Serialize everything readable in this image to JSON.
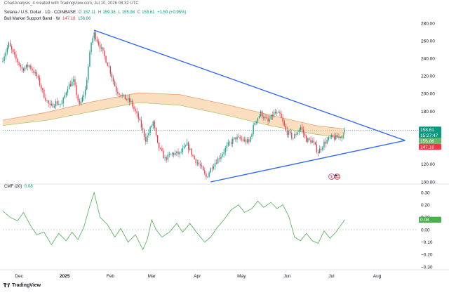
{
  "header": {
    "title": "ChartAnalysis_4 created with TradingView.com, Jul 10, 2026 08:32 UTC",
    "symbol": "Solana / U.S. Dollar · 1D · COINBASE",
    "o_label": "O",
    "o_value": "157.11",
    "h_label": "H",
    "h_value": "159.38",
    "l_label": "L",
    "l_value": "155.98",
    "c_label": "C",
    "c_value": "158.61",
    "change": "+1.50 (+0.95%)",
    "indicator_name": "Bull Market Support Band · W",
    "indicator_v1": "147.18",
    "indicator_v2": "156.86",
    "cmf_label": "CMF (20)",
    "cmf_value": "0.08"
  },
  "footer": {
    "brand": "TradingView"
  },
  "colors": {
    "up": "#089981",
    "down": "#f23645",
    "trendline": "#2962ff",
    "band_fill": "#f5c28a",
    "band_upper": "#e8a070",
    "band_lower": "#a5c96e",
    "cmf_line": "#4caf50",
    "last_price_tag": "#089981",
    "timer_tag": "#089981",
    "band_tag_1": "#f23645",
    "band_tag_2": "#66bb6a",
    "cmf_tag": "#4caf50"
  },
  "price_tags": {
    "last_price": "158.61",
    "countdown": "15:27:47",
    "band_1": "156.86",
    "band_2": "147.18",
    "cmf_tag": "0.08"
  },
  "icons": [
    "tradingview-logo-icon",
    "event-marker-icon",
    "us-flag-icon"
  ],
  "chart_data": [
    {
      "type": "candlestick",
      "title": "Solana / U.S. Dollar · 1D · COINBASE",
      "ylim": [
        100,
        290
      ],
      "y_ticks": [
        "100.00",
        "120.00",
        "140.00",
        "160.00",
        "180.00",
        "200.00",
        "220.00",
        "240.00",
        "260.00",
        "280.00"
      ],
      "x_ticks": [
        "Dec",
        "2025",
        "Feb",
        "Mar",
        "Apr",
        "May",
        "Jun",
        "Jul",
        "Aug"
      ],
      "x_tick_dates": [
        "2024-12-01",
        "2025-01-01",
        "2025-02-01",
        "2025-03-01",
        "2025-04-01",
        "2025-05-01",
        "2025-06-01",
        "2025-07-01",
        "2025-08-01"
      ],
      "x_range": [
        "2024-11-20",
        "2025-08-25"
      ],
      "close_keypoints": [
        [
          "2024-11-20",
          240
        ],
        [
          "2024-11-24",
          256
        ],
        [
          "2024-11-28",
          242
        ],
        [
          "2024-12-03",
          228
        ],
        [
          "2024-12-08",
          232
        ],
        [
          "2024-12-13",
          220
        ],
        [
          "2024-12-18",
          198
        ],
        [
          "2024-12-22",
          185
        ],
        [
          "2024-12-26",
          190
        ],
        [
          "2024-12-30",
          188
        ],
        [
          "2025-01-03",
          208
        ],
        [
          "2025-01-07",
          214
        ],
        [
          "2025-01-11",
          186
        ],
        [
          "2025-01-15",
          204
        ],
        [
          "2025-01-19",
          258
        ],
        [
          "2025-01-21",
          268
        ],
        [
          "2025-01-26",
          250
        ],
        [
          "2025-01-31",
          230
        ],
        [
          "2025-02-05",
          204
        ],
        [
          "2025-02-10",
          196
        ],
        [
          "2025-02-15",
          190
        ],
        [
          "2025-02-20",
          172
        ],
        [
          "2025-02-25",
          148
        ],
        [
          "2025-03-02",
          168
        ],
        [
          "2025-03-05",
          142
        ],
        [
          "2025-03-10",
          126
        ],
        [
          "2025-03-15",
          132
        ],
        [
          "2025-03-20",
          132
        ],
        [
          "2025-03-25",
          142
        ],
        [
          "2025-03-30",
          126
        ],
        [
          "2025-04-03",
          118
        ],
        [
          "2025-04-07",
          105
        ],
        [
          "2025-04-11",
          118
        ],
        [
          "2025-04-16",
          128
        ],
        [
          "2025-04-22",
          142
        ],
        [
          "2025-04-27",
          150
        ],
        [
          "2025-05-01",
          148
        ],
        [
          "2025-05-06",
          145
        ],
        [
          "2025-05-10",
          168
        ],
        [
          "2025-05-14",
          178
        ],
        [
          "2025-05-19",
          168
        ],
        [
          "2025-05-23",
          178
        ],
        [
          "2025-05-27",
          176
        ],
        [
          "2025-05-31",
          158
        ],
        [
          "2025-06-05",
          150
        ],
        [
          "2025-06-10",
          162
        ],
        [
          "2025-06-14",
          148
        ],
        [
          "2025-06-18",
          146
        ],
        [
          "2025-06-22",
          134
        ],
        [
          "2025-06-26",
          144
        ],
        [
          "2025-06-30",
          150
        ],
        [
          "2025-07-04",
          150
        ],
        [
          "2025-07-08",
          152
        ],
        [
          "2025-07-10",
          158.61
        ]
      ],
      "last_candle": {
        "date": "2025-07-10",
        "open": 157.11,
        "high": 159.38,
        "low": 155.98,
        "close": 158.61
      },
      "series": [
        {
          "name": "Bull Market Support Band · W",
          "type": "band",
          "upper": [
            [
              "2024-11-20",
              170
            ],
            [
              "2024-12-20",
              179
            ],
            [
              "2025-01-20",
              191
            ],
            [
              "2025-02-20",
              201
            ],
            [
              "2025-03-20",
              199
            ],
            [
              "2025-04-20",
              188
            ],
            [
              "2025-05-20",
              176
            ],
            [
              "2025-06-20",
              164
            ],
            [
              "2025-07-10",
              160
            ]
          ],
          "lower": [
            [
              "2024-11-20",
              164
            ],
            [
              "2024-12-20",
              170
            ],
            [
              "2025-01-20",
              180
            ],
            [
              "2025-02-20",
              190
            ],
            [
              "2025-03-20",
              187
            ],
            [
              "2025-04-20",
              176
            ],
            [
              "2025-05-20",
              164
            ],
            [
              "2025-06-20",
              154
            ],
            [
              "2025-07-10",
              150
            ]
          ]
        }
      ],
      "trendlines": [
        {
          "from": [
            "2025-01-21",
            272
          ],
          "to": [
            "2025-08-20",
            147
          ]
        },
        {
          "from": [
            "2025-04-10",
            100
          ],
          "to": [
            "2025-08-20",
            147
          ]
        }
      ],
      "reference_line": 158.61
    },
    {
      "type": "line",
      "title": "CMF (20)",
      "ylim": [
        -0.32,
        0.32
      ],
      "y_ticks": [
        "0.30",
        "0.20",
        "0.10",
        "0.00",
        "−0.10",
        "−0.20",
        "−0.30"
      ],
      "zero_line": true,
      "series": [
        {
          "name": "CMF (20)",
          "points": [
            [
              "2024-11-20",
              0.15
            ],
            [
              "2024-11-25",
              0.1
            ],
            [
              "2024-11-30",
              0.07
            ],
            [
              "2024-12-04",
              0.14
            ],
            [
              "2024-12-09",
              0.03
            ],
            [
              "2024-12-13",
              -0.04
            ],
            [
              "2024-12-18",
              -0.02
            ],
            [
              "2024-12-23",
              -0.12
            ],
            [
              "2024-12-28",
              -0.03
            ],
            [
              "2025-01-02",
              -0.09
            ],
            [
              "2025-01-06",
              -0.02
            ],
            [
              "2025-01-10",
              -0.08
            ],
            [
              "2025-01-14",
              0.02
            ],
            [
              "2025-01-18",
              0.19
            ],
            [
              "2025-01-21",
              0.3
            ],
            [
              "2025-01-25",
              0.1
            ],
            [
              "2025-01-30",
              0.04
            ],
            [
              "2025-02-04",
              -0.06
            ],
            [
              "2025-02-08",
              0.01
            ],
            [
              "2025-02-13",
              -0.1
            ],
            [
              "2025-02-18",
              -0.04
            ],
            [
              "2025-02-23",
              -0.16
            ],
            [
              "2025-02-26",
              -0.08
            ],
            [
              "2025-03-01",
              0.08
            ],
            [
              "2025-03-04",
              0.0
            ],
            [
              "2025-03-08",
              -0.06
            ],
            [
              "2025-03-13",
              -0.02
            ],
            [
              "2025-03-18",
              0.05
            ],
            [
              "2025-03-22",
              -0.02
            ],
            [
              "2025-03-27",
              0.05
            ],
            [
              "2025-04-01",
              -0.03
            ],
            [
              "2025-04-06",
              -0.1
            ],
            [
              "2025-04-10",
              -0.06
            ],
            [
              "2025-04-14",
              0.01
            ],
            [
              "2025-04-19",
              0.08
            ],
            [
              "2025-04-24",
              0.16
            ],
            [
              "2025-04-29",
              0.2
            ],
            [
              "2025-05-03",
              0.14
            ],
            [
              "2025-05-08",
              0.17
            ],
            [
              "2025-05-12",
              0.23
            ],
            [
              "2025-05-16",
              0.18
            ],
            [
              "2025-05-21",
              0.22
            ],
            [
              "2025-05-25",
              0.17
            ],
            [
              "2025-05-29",
              0.2
            ],
            [
              "2025-06-02",
              0.11
            ],
            [
              "2025-06-06",
              -0.06
            ],
            [
              "2025-06-10",
              -0.09
            ],
            [
              "2025-06-14",
              -0.03
            ],
            [
              "2025-06-18",
              -0.09
            ],
            [
              "2025-06-22",
              -0.11
            ],
            [
              "2025-06-26",
              -0.01
            ],
            [
              "2025-06-30",
              -0.07
            ],
            [
              "2025-07-04",
              -0.02
            ],
            [
              "2025-07-07",
              0.03
            ],
            [
              "2025-07-10",
              0.08
            ]
          ]
        }
      ]
    }
  ]
}
